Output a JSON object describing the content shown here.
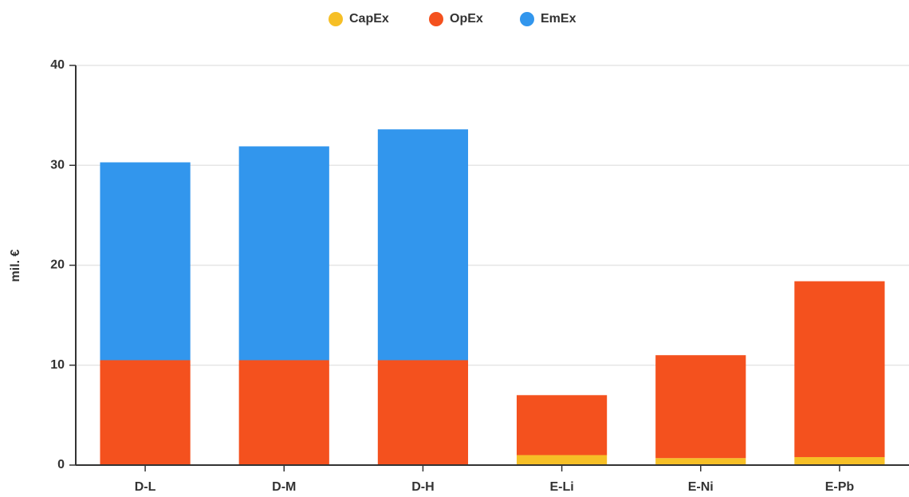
{
  "chart_data": {
    "type": "stacked_bar",
    "categories": [
      "D-L",
      "D-M",
      "D-H",
      "E-Li",
      "E-Ni",
      "E-Pb"
    ],
    "series": [
      {
        "name": "CapEx",
        "color": "#f6bf26",
        "values": [
          0,
          0,
          0,
          1.0,
          0.7,
          0.8
        ]
      },
      {
        "name": "OpEx",
        "color": "#f4511e",
        "values": [
          10.5,
          10.5,
          10.5,
          6.0,
          10.3,
          17.6
        ]
      },
      {
        "name": "EmEx",
        "color": "#3296ed",
        "values": [
          19.8,
          21.4,
          23.1,
          0,
          0,
          0
        ]
      }
    ],
    "y_label": "mil. €",
    "ylim": [
      0,
      40
    ],
    "yticks": [
      0,
      10,
      20,
      30,
      40
    ],
    "grid": true,
    "legend": "top"
  }
}
